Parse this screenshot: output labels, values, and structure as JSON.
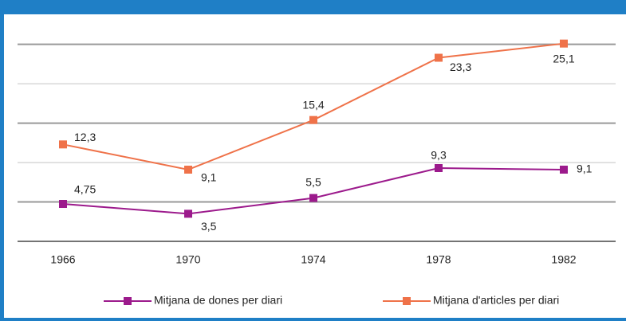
{
  "chart_data": {
    "type": "line",
    "categories": [
      "1966",
      "1970",
      "1974",
      "1978",
      "1982"
    ],
    "series": [
      {
        "name": "Mitjana de dones per diari",
        "color": "#9c1a8c",
        "values": [
          4.75,
          3.5,
          5.5,
          9.3,
          9.1
        ],
        "value_labels": [
          "4,75",
          "3,5",
          "5,5",
          "9,3",
          "9,1"
        ]
      },
      {
        "name": "Mitjana d'articles per diari",
        "color": "#ef7249",
        "values": [
          12.3,
          9.1,
          15.4,
          23.3,
          25.1
        ],
        "value_labels": [
          "12,3",
          "9,1",
          "15,4",
          "23,3",
          "25,1"
        ]
      }
    ],
    "ylim": [
      0,
      28
    ],
    "yticks": [
      0,
      5,
      10,
      15,
      20,
      25
    ],
    "grid": true,
    "legend": "bottom"
  }
}
